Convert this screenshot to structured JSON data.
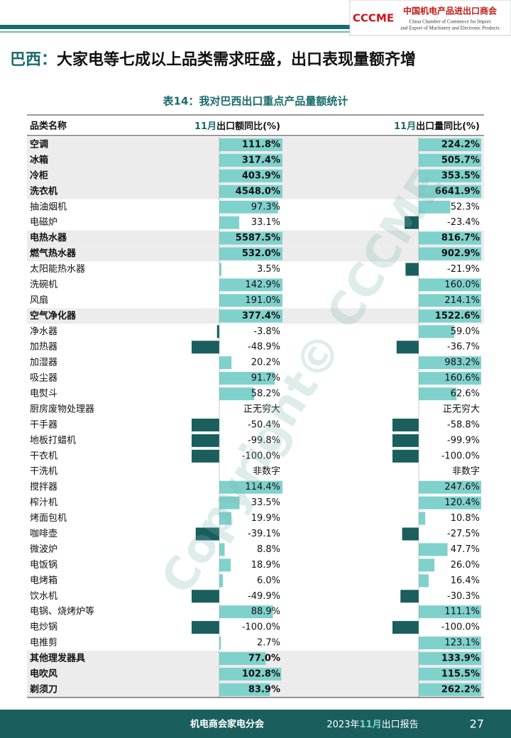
{
  "header": {
    "logo": "CCCME",
    "org_cn": "中国机电产品进出口商会",
    "org_en1": "China Chamber of Commerce for Import",
    "org_en2": "and Export of Machinery and Electronic Products"
  },
  "title_prefix": "巴西：",
  "title": "大家电等七成以上品类需求旺盛，出口表现量额齐增",
  "table": {
    "caption": "表14：我对巴西出口重点产品量额统计",
    "columns": [
      {
        "text": "品类名称"
      },
      {
        "month": "11月",
        "text": "出口额同比(%)"
      },
      {
        "month": "11月",
        "text": "出口量同比(%)"
      }
    ],
    "rows": [
      {
        "name": "空调",
        "amount": "111.8%",
        "volume": "224.2%",
        "bold": true
      },
      {
        "name": "冰箱",
        "amount": "317.4%",
        "volume": "505.7%",
        "bold": true
      },
      {
        "name": "冷柜",
        "amount": "403.9%",
        "volume": "353.5%",
        "bold": true
      },
      {
        "name": "洗衣机",
        "amount": "4548.0%",
        "volume": "6641.9%",
        "bold": true
      },
      {
        "name": "抽油烟机",
        "amount": "97.3%",
        "volume": "52.3%"
      },
      {
        "name": "电磁炉",
        "amount": "33.1%",
        "volume": "-23.4%"
      },
      {
        "name": "电热水器",
        "amount": "5587.5%",
        "volume": "816.7%",
        "bold": true
      },
      {
        "name": "燃气热水器",
        "amount": "532.0%",
        "volume": "902.9%",
        "bold": true
      },
      {
        "name": "太阳能热水器",
        "amount": "3.5%",
        "volume": "-21.9%"
      },
      {
        "name": "洗碗机",
        "amount": "142.9%",
        "volume": "160.0%"
      },
      {
        "name": "风扇",
        "amount": "191.0%",
        "volume": "214.1%"
      },
      {
        "name": "空气净化器",
        "amount": "377.4%",
        "volume": "1522.6%",
        "bold": true
      },
      {
        "name": "净水器",
        "amount": "-3.8%",
        "volume": "59.0%"
      },
      {
        "name": "加热器",
        "amount": "-48.9%",
        "volume": "-36.7%"
      },
      {
        "name": "加湿器",
        "amount": "20.2%",
        "volume": "983.2%"
      },
      {
        "name": "吸尘器",
        "amount": "91.7%",
        "volume": "160.6%"
      },
      {
        "name": "电熨斗",
        "amount": "58.2%",
        "volume": "62.6%"
      },
      {
        "name": "厨房废物处理器",
        "amount": "正无穷大",
        "volume": "正无穷大"
      },
      {
        "name": "干手器",
        "amount": "-50.4%",
        "volume": "-58.8%"
      },
      {
        "name": "地板打蜡机",
        "amount": "-99.8%",
        "volume": "-99.9%"
      },
      {
        "name": "干衣机",
        "amount": "-100.0%",
        "volume": "-100.0%"
      },
      {
        "name": "干洗机",
        "amount": "非数字",
        "volume": "非数字"
      },
      {
        "name": "搅拌器",
        "amount": "114.4%",
        "volume": "247.6%"
      },
      {
        "name": "榨汁机",
        "amount": "33.5%",
        "volume": "120.4%"
      },
      {
        "name": "烤面包机",
        "amount": "19.9%",
        "volume": "10.8%"
      },
      {
        "name": "咖啡壶",
        "amount": "-39.1%",
        "volume": "-27.5%"
      },
      {
        "name": "微波炉",
        "amount": "8.8%",
        "volume": "47.7%"
      },
      {
        "name": "电饭锅",
        "amount": "18.9%",
        "volume": "26.0%"
      },
      {
        "name": "电烤箱",
        "amount": "6.0%",
        "volume": "16.4%"
      },
      {
        "name": "饮水机",
        "amount": "-49.9%",
        "volume": "-30.3%"
      },
      {
        "name": "电锅、烧烤炉等",
        "amount": "88.9%",
        "volume": "111.1%"
      },
      {
        "name": "电炒锅",
        "amount": "-100.0%",
        "volume": "-100.0%"
      },
      {
        "name": "电推剪",
        "amount": "2.7%",
        "volume": "123.1%"
      },
      {
        "name": "其他理发器具",
        "amount": "77.0%",
        "volume": "133.9%",
        "bold": true
      },
      {
        "name": "电吹风",
        "amount": "102.8%",
        "volume": "115.5%",
        "bold": true
      },
      {
        "name": "剃须刀",
        "amount": "83.9%",
        "volume": "262.2%",
        "bold": true
      }
    ]
  },
  "watermark": "Copyright© CCCME",
  "footer": {
    "left": "机电商会家电分会",
    "year": "2023年",
    "month": "11月",
    "report": "出口报告",
    "page": "27"
  }
}
